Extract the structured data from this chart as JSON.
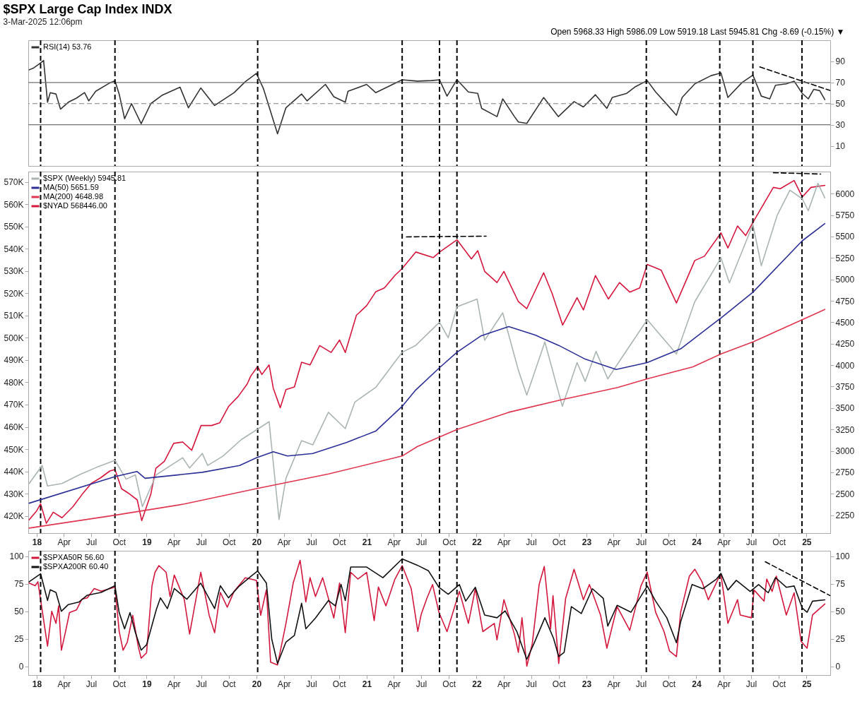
{
  "chart_data": [
    {
      "type": "line",
      "title": "$SPX Large Cap Index INDX",
      "subtitle": "3-Mar-2025 12:06pm",
      "annotations": [
        "Open 5968.33  High 5986.09  Low 5919.18  Last 5945.81  Chg -8.69 (-0.15%) ▼"
      ],
      "xlim": [
        "2017-12-04",
        "2025-03-21"
      ],
      "y2lim": [
        -9,
        110
      ],
      "y2ticks": [
        10,
        30,
        50,
        70,
        90
      ],
      "tick_labels": "y",
      "legend": "top left",
      "series": [
        {
          "name": "RSI(14) 53.76",
          "color": "#333333",
          "axis": "y2",
          "x": [
            "2017-12-07",
            "2017-12-22",
            "2018-01-10",
            "2018-01-24",
            "2018-02-06",
            "2018-02-15",
            "2018-03-06",
            "2018-03-21",
            "2018-04-16",
            "2018-05-13",
            "2018-06-09",
            "2018-06-23",
            "2018-07-16",
            "2018-08-31",
            "2018-09-18",
            "2018-10-02",
            "2018-10-20",
            "2018-11-12",
            "2018-12-14",
            "2019-01-15",
            "2019-02-21",
            "2019-04-22",
            "2019-05-20",
            "2019-06-30",
            "2019-08-15",
            "2019-10-19",
            "2019-11-25",
            "2020-01-01",
            "2020-01-24",
            "2020-03-11",
            "2020-04-08",
            "2020-05-30",
            "2020-06-17",
            "2020-08-17",
            "2020-09-14",
            "2020-10-22",
            "2020-10-31",
            "2021-01-01",
            "2021-01-31",
            "2021-04-29",
            "2021-06-18",
            "2021-08-04",
            "2021-08-31",
            "2021-09-25",
            "2021-10-28",
            "2021-12-05",
            "2022-01-05",
            "2022-01-18",
            "2022-03-10",
            "2022-03-29",
            "2022-05-07",
            "2022-05-20",
            "2022-06-17",
            "2022-08-12",
            "2022-09-30",
            "2022-11-21",
            "2022-12-22",
            "2023-01-31",
            "2023-03-10",
            "2023-03-28",
            "2023-05-15",
            "2023-06-13",
            "2023-07-22",
            "2023-08-19",
            "2023-09-25",
            "2023-10-27",
            "2023-11-15",
            "2023-12-27",
            "2024-02-19",
            "2024-03-23",
            "2024-04-15",
            "2024-06-01",
            "2024-07-07",
            "2024-08-04",
            "2024-09-01",
            "2024-09-20",
            "2024-10-26",
            "2024-11-21",
            "2024-12-18",
            "2025-01-07",
            "2025-01-25",
            "2025-02-14",
            "2025-03-03"
          ],
          "values": [
            82.0,
            83.8,
            87.7,
            90.8,
            51.3,
            60.4,
            59.1,
            44.8,
            51.3,
            55.2,
            60.4,
            52.6,
            61.7,
            69.5,
            71.6,
            59.1,
            35.7,
            50.0,
            31.0,
            50.0,
            57.8,
            65.6,
            46.1,
            64.8,
            48.2,
            60.4,
            70.8,
            78.6,
            64.3,
            21.4,
            46.1,
            59.1,
            52.6,
            68.2,
            56.5,
            51.3,
            61.7,
            68.2,
            60.4,
            72.6,
            71.3,
            71.8,
            72.6,
            57.1,
            72.6,
            61.0,
            59.7,
            45.5,
            37.7,
            54.5,
            37.7,
            32.6,
            31.3,
            55.8,
            37.7,
            51.9,
            46.8,
            58.4,
            45.5,
            55.8,
            59.7,
            66.1,
            71.8,
            61.0,
            49.4,
            39.0,
            55.8,
            68.7,
            76.5,
            79.0,
            55.8,
            70.0,
            77.0,
            57.1,
            54.5,
            67.4,
            68.7,
            71.3,
            59.7,
            54.5,
            63.5,
            62.3,
            53.8
          ]
        },
        {
          "type": "line",
          "color": "#000000",
          "line_style": "dashed",
          "axis": "y2",
          "x": [
            "2024-07-30",
            "2025-03-20"
          ],
          "values": [
            84.7,
            62.5
          ]
        }
      ],
      "ref_lines": [
        {
          "axis": "y2",
          "value": 70,
          "color": "#707070"
        },
        {
          "axis": "y2",
          "value": 50,
          "color": "#808080",
          "line_style": "dashed"
        },
        {
          "axis": "y2",
          "value": 30,
          "color": "#707070"
        },
        {
          "axis": "x",
          "value": "2018-01-14",
          "color": "#000000",
          "line_style": "dashed"
        },
        {
          "axis": "x",
          "value": "2018-09-18",
          "color": "#000000",
          "line_style": "dashed"
        },
        {
          "axis": "x",
          "value": "2020-01-05",
          "color": "#000000",
          "line_style": "dashed"
        },
        {
          "axis": "x",
          "value": "2021-04-29",
          "color": "#000000",
          "line_style": "dashed"
        },
        {
          "axis": "x",
          "value": "2021-08-31",
          "color": "#000000",
          "line_style": "dashed"
        },
        {
          "axis": "x",
          "value": "2021-10-28",
          "color": "#000000",
          "line_style": "dashed"
        },
        {
          "axis": "x",
          "value": "2023-07-19",
          "color": "#000000",
          "line_style": "dashed"
        },
        {
          "axis": "x",
          "value": "2024-03-19",
          "color": "#000000",
          "line_style": "dashed"
        },
        {
          "axis": "x",
          "value": "2024-07-07",
          "color": "#000000",
          "line_style": "dashed"
        },
        {
          "axis": "x",
          "value": "2024-12-17",
          "color": "#000000",
          "line_style": "dashed"
        }
      ]
    },
    {
      "type": "line",
      "xlim": [
        "2017-12-04",
        "2025-03-21"
      ],
      "xticks": [
        {
          "value": "2018-01-01",
          "label": "18"
        },
        {
          "value": "2018-04-01",
          "label": "Apr"
        },
        {
          "value": "2018-07-01",
          "label": "Jul"
        },
        {
          "value": "2018-10-01",
          "label": "Oct"
        },
        {
          "value": "2019-01-01",
          "label": "19"
        },
        {
          "value": "2019-04-01",
          "label": "Apr"
        },
        {
          "value": "2019-07-01",
          "label": "Jul"
        },
        {
          "value": "2019-10-01",
          "label": "Oct"
        },
        {
          "value": "2020-01-01",
          "label": "20"
        },
        {
          "value": "2020-04-01",
          "label": "Apr"
        },
        {
          "value": "2020-07-01",
          "label": "Jul"
        },
        {
          "value": "2020-10-01",
          "label": "Oct"
        },
        {
          "value": "2021-01-01",
          "label": "21"
        },
        {
          "value": "2021-04-01",
          "label": "Apr"
        },
        {
          "value": "2021-07-01",
          "label": "Jul"
        },
        {
          "value": "2021-10-01",
          "label": "Oct"
        },
        {
          "value": "2022-01-01",
          "label": "22"
        },
        {
          "value": "2022-04-01",
          "label": "Apr"
        },
        {
          "value": "2022-07-01",
          "label": "Jul"
        },
        {
          "value": "2022-10-01",
          "label": "Oct"
        },
        {
          "value": "2023-01-01",
          "label": "23"
        },
        {
          "value": "2023-04-01",
          "label": "Apr"
        },
        {
          "value": "2023-07-01",
          "label": "Jul"
        },
        {
          "value": "2023-10-01",
          "label": "Oct"
        },
        {
          "value": "2024-01-01",
          "label": "24"
        },
        {
          "value": "2024-04-01",
          "label": "Apr"
        },
        {
          "value": "2024-07-01",
          "label": "Jul"
        },
        {
          "value": "2024-10-01",
          "label": "Oct"
        },
        {
          "value": "2025-01-01",
          "label": "25"
        }
      ],
      "ylim": [
        412300,
        574600
      ],
      "yticks": [
        {
          "value": 420000,
          "label": "420K"
        },
        {
          "value": 430000,
          "label": "430K"
        },
        {
          "value": 440000,
          "label": "440K"
        },
        {
          "value": 450000,
          "label": "450K"
        },
        {
          "value": 460000,
          "label": "460K"
        },
        {
          "value": 470000,
          "label": "470K"
        },
        {
          "value": 480000,
          "label": "480K"
        },
        {
          "value": 490000,
          "label": "490K"
        },
        {
          "value": 500000,
          "label": "500K"
        },
        {
          "value": 510000,
          "label": "510K"
        },
        {
          "value": 520000,
          "label": "520K"
        },
        {
          "value": 530000,
          "label": "530K"
        },
        {
          "value": 540000,
          "label": "540K"
        },
        {
          "value": 550000,
          "label": "550K"
        },
        {
          "value": 560000,
          "label": "560K"
        },
        {
          "value": 570000,
          "label": "570K"
        }
      ],
      "y2lim": [
        2041,
        6257
      ],
      "y2ticks": [
        2250,
        2500,
        2750,
        3000,
        3250,
        3500,
        3750,
        4000,
        4250,
        4500,
        4750,
        5000,
        5250,
        5500,
        5750,
        6000
      ],
      "legend": "top left",
      "series": [
        {
          "name": "$SPX (Weekly) 5945.81",
          "color": "#aab5b3",
          "axis": "y2",
          "x": [
            "2017-12-07",
            "2018-01-19",
            "2018-02-06",
            "2018-03-26",
            "2018-05-22",
            "2018-07-20",
            "2018-09-18",
            "2018-10-25",
            "2018-11-25",
            "2018-12-18",
            "2019-02-02",
            "2019-05-01",
            "2019-05-24",
            "2019-07-05",
            "2019-07-23",
            "2019-09-12",
            "2019-11-11",
            "2020-02-12",
            "2020-03-16",
            "2020-04-08",
            "2020-05-30",
            "2020-07-06",
            "2020-08-27",
            "2020-10-22",
            "2020-11-23",
            "2021-01-31",
            "2021-04-29",
            "2021-06-13",
            "2021-08-31",
            "2021-09-29",
            "2021-10-28",
            "2022-01-03",
            "2022-01-28",
            "2022-03-29",
            "2022-05-20",
            "2022-06-17",
            "2022-08-16",
            "2022-10-13",
            "2022-12-01",
            "2022-12-28",
            "2023-02-02",
            "2023-03-13",
            "2023-05-01",
            "2023-07-22",
            "2023-10-27",
            "2023-12-27",
            "2024-03-23",
            "2024-04-20",
            "2024-07-07",
            "2024-08-04",
            "2024-09-26",
            "2024-11-07",
            "2024-12-18",
            "2025-01-07",
            "2025-02-08",
            "2025-03-03"
          ],
          "values": [
            2620,
            2830,
            2590,
            2620,
            2720,
            2810,
            2890,
            2670,
            2720,
            2350,
            2720,
            2920,
            2800,
            2970,
            2830,
            2940,
            3130,
            3340,
            2200,
            2680,
            3120,
            3070,
            3450,
            3260,
            3570,
            3740,
            4150,
            4230,
            4500,
            4320,
            4680,
            4770,
            4290,
            4610,
            3940,
            3650,
            4270,
            3520,
            4030,
            3810,
            4160,
            3840,
            4100,
            4530,
            4130,
            4740,
            5250,
            4960,
            5640,
            5160,
            5750,
            6040,
            5940,
            5800,
            6120,
            5950
          ]
        },
        {
          "name": "MA(50) 5651.59",
          "color": "#2b2f95",
          "axis": "y2",
          "x": [
            "2017-12-07",
            "2018-09-18",
            "2018-11-30",
            "2018-12-27",
            "2019-07-05",
            "2019-11-06",
            "2020-01-01",
            "2020-02-26",
            "2020-04-13",
            "2020-07-06",
            "2020-10-27",
            "2021-01-31",
            "2021-04-29",
            "2021-06-13",
            "2021-08-31",
            "2021-10-28",
            "2022-01-15",
            "2022-04-18",
            "2022-07-15",
            "2022-10-01",
            "2022-12-28",
            "2023-04-10",
            "2023-07-22",
            "2023-11-10",
            "2024-03-23",
            "2024-07-07",
            "2024-12-18",
            "2025-03-03"
          ],
          "values": [
            2390,
            2700,
            2760,
            2680,
            2750,
            2830,
            2920,
            2990,
            2940,
            2970,
            3100,
            3230,
            3520,
            3710,
            3970,
            4150,
            4340,
            4450,
            4350,
            4230,
            4070,
            3950,
            4030,
            4190,
            4550,
            4850,
            5450,
            5650
          ]
        },
        {
          "name": "MA(200) 4648.98",
          "color": "#e0354f",
          "axis": "y2",
          "x": [
            "2017-12-07",
            "2018-09-18",
            "2019-05-06",
            "2020-01-01",
            "2020-08-27",
            "2021-04-29",
            "2021-06-18",
            "2021-10-28",
            "2022-04-18",
            "2022-10-14",
            "2023-04-15",
            "2023-07-22",
            "2023-12-21",
            "2024-03-23",
            "2024-07-07",
            "2024-12-18",
            "2025-03-03"
          ],
          "values": [
            2100,
            2250,
            2380,
            2560,
            2730,
            2940,
            3050,
            3250,
            3450,
            3600,
            3740,
            3840,
            3980,
            4130,
            4270,
            4530,
            4650
          ]
        },
        {
          "name": "$NYAD 568446.00",
          "color": "#d6163c",
          "x": [
            "2017-12-07",
            "2018-01-01",
            "2018-01-14",
            "2018-02-02",
            "2018-02-25",
            "2018-03-26",
            "2018-05-01",
            "2018-06-01",
            "2018-07-01",
            "2018-08-01",
            "2018-09-01",
            "2018-09-18",
            "2018-10-10",
            "2018-11-01",
            "2018-12-01",
            "2018-12-16",
            "2019-01-15",
            "2019-02-01",
            "2019-03-01",
            "2019-04-01",
            "2019-05-01",
            "2019-05-31",
            "2019-07-01",
            "2019-08-05",
            "2019-09-01",
            "2019-10-01",
            "2019-11-01",
            "2019-12-01",
            "2019-12-13",
            "2020-01-05",
            "2020-01-19",
            "2020-02-12",
            "2020-02-26",
            "2020-03-20",
            "2020-04-08",
            "2020-05-06",
            "2020-05-30",
            "2020-06-27",
            "2020-07-29",
            "2020-09-05",
            "2020-10-03",
            "2020-10-22",
            "2020-11-28",
            "2021-01-01",
            "2021-01-31",
            "2021-03-01",
            "2021-04-05",
            "2021-04-29",
            "2021-06-13",
            "2021-08-10",
            "2021-08-31",
            "2021-10-28",
            "2021-12-15",
            "2022-01-05",
            "2022-01-28",
            "2022-03-10",
            "2022-04-02",
            "2022-05-20",
            "2022-06-17",
            "2022-08-12",
            "2022-09-09",
            "2022-10-14",
            "2022-12-01",
            "2022-12-22",
            "2023-01-31",
            "2023-03-15",
            "2023-04-21",
            "2023-05-25",
            "2023-06-27",
            "2023-07-22",
            "2023-09-06",
            "2023-10-27",
            "2023-12-27",
            "2024-01-28",
            "2024-03-23",
            "2024-04-15",
            "2024-05-17",
            "2024-06-13",
            "2024-07-11",
            "2024-09-13",
            "2024-10-06",
            "2024-11-21",
            "2024-12-18",
            "2025-01-16",
            "2025-03-03"
          ],
          "values": [
            418300,
            422300,
            425500,
            416700,
            421700,
            419200,
            424100,
            429700,
            434600,
            437100,
            440200,
            440800,
            432200,
            430300,
            427200,
            417900,
            429700,
            441400,
            444500,
            452600,
            453200,
            449500,
            460600,
            460600,
            461800,
            469300,
            473600,
            479200,
            482800,
            487100,
            483500,
            487800,
            477300,
            468600,
            476700,
            477900,
            489000,
            487800,
            496500,
            493400,
            499000,
            493400,
            510100,
            514400,
            520600,
            522400,
            528000,
            531100,
            538500,
            536000,
            538400,
            544000,
            535400,
            539100,
            529800,
            524800,
            529800,
            516200,
            513100,
            529200,
            519900,
            505700,
            518000,
            512500,
            527900,
            517400,
            524800,
            520500,
            522400,
            532900,
            530400,
            515600,
            534700,
            536600,
            547100,
            540300,
            550200,
            545900,
            552700,
            567500,
            566900,
            570600,
            563200,
            567500,
            568400
          ]
        },
        {
          "type": "line",
          "color": "#000000",
          "line_style": "dashed",
          "x": [
            "2021-05-13",
            "2022-02-02"
          ],
          "values": [
            545300,
            545600
          ]
        },
        {
          "type": "line",
          "color": "#000000",
          "line_style": "dashed",
          "x": [
            "2024-09-13",
            "2025-02-17"
          ],
          "values": [
            574100,
            573500
          ]
        }
      ],
      "ref_lines": [
        {
          "axis": "x",
          "value": "2018-01-14",
          "color": "#000000",
          "line_style": "dashed"
        },
        {
          "axis": "x",
          "value": "2018-09-18",
          "color": "#000000",
          "line_style": "dashed"
        },
        {
          "axis": "x",
          "value": "2020-01-05",
          "color": "#000000",
          "line_style": "dashed"
        },
        {
          "axis": "x",
          "value": "2021-04-29",
          "color": "#000000",
          "line_style": "dashed"
        },
        {
          "axis": "x",
          "value": "2021-08-31",
          "color": "#000000",
          "line_style": "dashed"
        },
        {
          "axis": "x",
          "value": "2021-10-28",
          "color": "#000000",
          "line_style": "dashed"
        },
        {
          "axis": "x",
          "value": "2023-07-19",
          "color": "#000000",
          "line_style": "dashed"
        },
        {
          "axis": "x",
          "value": "2024-03-19",
          "color": "#000000",
          "line_style": "dashed"
        },
        {
          "axis": "x",
          "value": "2024-07-07",
          "color": "#000000",
          "line_style": "dashed"
        },
        {
          "axis": "x",
          "value": "2024-12-17",
          "color": "#000000",
          "line_style": "dashed"
        }
      ]
    },
    {
      "type": "line",
      "xlim": [
        "2017-12-04",
        "2025-03-21"
      ],
      "xticks": [
        {
          "value": "2018-01-01",
          "label": "18"
        },
        {
          "value": "2018-04-01",
          "label": "Apr"
        },
        {
          "value": "2018-07-01",
          "label": "Jul"
        },
        {
          "value": "2018-10-01",
          "label": "Oct"
        },
        {
          "value": "2019-01-01",
          "label": "19"
        },
        {
          "value": "2019-04-01",
          "label": "Apr"
        },
        {
          "value": "2019-07-01",
          "label": "Jul"
        },
        {
          "value": "2019-10-01",
          "label": "Oct"
        },
        {
          "value": "2020-01-01",
          "label": "20"
        },
        {
          "value": "2020-04-01",
          "label": "Apr"
        },
        {
          "value": "2020-07-01",
          "label": "Jul"
        },
        {
          "value": "2020-10-01",
          "label": "Oct"
        },
        {
          "value": "2021-01-01",
          "label": "21"
        },
        {
          "value": "2021-04-01",
          "label": "Apr"
        },
        {
          "value": "2021-07-01",
          "label": "Jul"
        },
        {
          "value": "2021-10-01",
          "label": "Oct"
        },
        {
          "value": "2022-01-01",
          "label": "22"
        },
        {
          "value": "2022-04-01",
          "label": "Apr"
        },
        {
          "value": "2022-07-01",
          "label": "Jul"
        },
        {
          "value": "2022-10-01",
          "label": "Oct"
        },
        {
          "value": "2023-01-01",
          "label": "23"
        },
        {
          "value": "2023-04-01",
          "label": "Apr"
        },
        {
          "value": "2023-07-01",
          "label": "Jul"
        },
        {
          "value": "2023-10-01",
          "label": "Oct"
        },
        {
          "value": "2024-01-01",
          "label": "24"
        },
        {
          "value": "2024-04-01",
          "label": "Apr"
        },
        {
          "value": "2024-07-01",
          "label": "Jul"
        },
        {
          "value": "2024-10-01",
          "label": "Oct"
        },
        {
          "value": "2025-01-01",
          "label": "25"
        }
      ],
      "ylim": [
        -8,
        105
      ],
      "yticks": [
        0,
        25,
        50,
        75,
        100
      ],
      "y2lim": [
        -8,
        105
      ],
      "y2ticks": [
        0,
        25,
        50,
        75,
        100
      ],
      "legend": "top left",
      "series": [
        {
          "name": "$SPXA50R 56.60",
          "color": "#d3173d",
          "x": [
            "2017-12-07",
            "2017-12-27",
            "2018-01-05",
            "2018-02-06",
            "2018-02-20",
            "2018-03-06",
            "2018-03-15",
            "2018-03-24",
            "2018-04-07",
            "2018-04-20",
            "2018-05-13",
            "2018-05-31",
            "2018-06-18",
            "2018-07-11",
            "2018-08-03",
            "2018-09-18",
            "2018-10-02",
            "2018-10-15",
            "2018-10-29",
            "2018-11-16",
            "2018-12-05",
            "2018-12-14",
            "2019-01-01",
            "2019-01-19",
            "2019-01-29",
            "2019-02-11",
            "2019-03-07",
            "2019-03-20",
            "2019-04-03",
            "2019-05-06",
            "2019-05-24",
            "2019-06-30",
            "2019-07-28",
            "2019-08-15",
            "2019-09-03",
            "2019-09-26",
            "2019-10-19",
            "2019-11-25",
            "2020-01-01",
            "2020-01-15",
            "2020-02-03",
            "2020-02-17",
            "2020-03-11",
            "2020-04-08",
            "2020-05-02",
            "2020-05-25",
            "2020-06-13",
            "2020-06-27",
            "2020-07-15",
            "2020-08-08",
            "2020-09-14",
            "2020-10-03",
            "2020-10-22",
            "2020-11-09",
            "2020-12-03",
            "2021-01-01",
            "2021-01-26",
            "2021-02-09",
            "2021-03-06",
            "2021-04-05",
            "2021-04-29",
            "2021-05-29",
            "2021-06-20",
            "2021-07-01",
            "2021-07-20",
            "2021-08-08",
            "2021-08-29",
            "2021-09-25",
            "2021-11-05",
            "2021-12-05",
            "2021-12-28",
            "2022-01-22",
            "2022-03-01",
            "2022-03-10",
            "2022-04-02",
            "2022-05-07",
            "2022-05-20",
            "2022-06-01",
            "2022-06-17",
            "2022-07-05",
            "2022-07-28",
            "2022-08-14",
            "2022-09-04",
            "2022-09-12",
            "2022-10-01",
            "2022-10-24",
            "2022-11-21",
            "2022-12-22",
            "2023-01-11",
            "2023-02-17",
            "2023-03-10",
            "2023-04-13",
            "2023-05-25",
            "2023-07-01",
            "2023-07-22",
            "2023-08-19",
            "2023-09-16",
            "2023-10-04",
            "2023-10-27",
            "2023-11-10",
            "2023-12-09",
            "2023-12-27",
            "2024-01-20",
            "2024-02-10",
            "2024-03-18",
            "2024-03-23",
            "2024-04-15",
            "2024-05-17",
            "2024-05-26",
            "2024-07-02",
            "2024-07-11",
            "2024-08-13",
            "2024-08-22",
            "2024-09-09",
            "2024-09-23",
            "2024-10-26",
            "2024-11-21",
            "2024-12-14",
            "2025-01-03",
            "2025-01-21",
            "2025-03-03"
          ],
          "values": [
            75.6,
            73.2,
            76.8,
            18.3,
            50.0,
            39.0,
            54.9,
            14.6,
            31.7,
            48.8,
            51.2,
            61.0,
            62.2,
            70.7,
            68.3,
            72.0,
            31.7,
            14.6,
            22.0,
            46.3,
            17.1,
            7.3,
            12.2,
            73.2,
            85.4,
            91.5,
            85.4,
            63.4,
            82.9,
            61.0,
            29.3,
            85.4,
            46.3,
            30.5,
            67.1,
            53.7,
            68.3,
            80.5,
            78.0,
            46.3,
            69.5,
            3.7,
            1.2,
            39.0,
            75.6,
            96.3,
            58.5,
            80.5,
            63.4,
            80.5,
            43.9,
            75.6,
            30.5,
            85.4,
            79.3,
            85.4,
            41.5,
            72.0,
            54.9,
            79.3,
            91.5,
            70.7,
            31.7,
            47.0,
            61.7,
            74.3,
            49.1,
            31.5,
            68.0,
            39.0,
            70.5,
            31.5,
            39.0,
            24.0,
            60.5,
            29.0,
            12.6,
            44.1,
            0.0,
            20.2,
            74.3,
            90.7,
            34.0,
            64.2,
            2.5,
            61.7,
            88.2,
            60.5,
            74.3,
            46.6,
            16.4,
            54.2,
            32.7,
            73.0,
            85.6,
            49.1,
            31.5,
            13.9,
            8.8,
            49.1,
            81.9,
            88.2,
            76.8,
            60.5,
            81.9,
            83.1,
            39.0,
            60.5,
            46.6,
            44.1,
            69.3,
            59.2,
            79.3,
            68.0,
            81.9,
            46.6,
            66.8,
            22.7,
            16.4,
            46.6,
            56.6
          ]
        },
        {
          "name": "$SPXA200R 60.40",
          "color": "#111111",
          "x": [
            "2017-12-07",
            "2018-01-14",
            "2018-02-06",
            "2018-02-15",
            "2018-03-06",
            "2018-03-24",
            "2018-04-16",
            "2018-05-22",
            "2018-06-18",
            "2018-08-03",
            "2018-09-18",
            "2018-10-02",
            "2018-10-20",
            "2018-11-07",
            "2018-11-25",
            "2018-12-14",
            "2019-01-01",
            "2019-02-02",
            "2019-02-16",
            "2019-03-11",
            "2019-04-03",
            "2019-05-15",
            "2019-06-30",
            "2019-08-15",
            "2019-09-03",
            "2019-09-30",
            "2019-11-06",
            "2019-12-13",
            "2020-01-05",
            "2020-02-03",
            "2020-02-21",
            "2020-03-11",
            "2020-04-08",
            "2020-05-06",
            "2020-05-30",
            "2020-06-13",
            "2020-07-15",
            "2020-08-27",
            "2020-09-19",
            "2020-10-08",
            "2020-10-22",
            "2020-11-09",
            "2021-01-01",
            "2021-02-24",
            "2021-04-29",
            "2021-06-18",
            "2021-07-25",
            "2021-08-29",
            "2021-09-29",
            "2021-11-05",
            "2021-11-26",
            "2021-12-28",
            "2022-01-28",
            "2022-03-10",
            "2022-04-06",
            "2022-05-15",
            "2022-06-17",
            "2022-07-10",
            "2022-08-16",
            "2022-09-14",
            "2022-10-01",
            "2022-10-19",
            "2022-11-12",
            "2022-12-15",
            "2023-01-21",
            "2023-02-26",
            "2023-03-13",
            "2023-04-13",
            "2023-05-29",
            "2023-07-22",
            "2023-08-19",
            "2023-09-25",
            "2023-10-27",
            "2023-11-10",
            "2023-12-18",
            "2024-01-23",
            "2024-03-08",
            "2024-03-23",
            "2024-04-15",
            "2024-05-13",
            "2024-06-28",
            "2024-07-26",
            "2024-08-27",
            "2024-09-20",
            "2024-10-26",
            "2024-11-21",
            "2024-12-18",
            "2025-01-03",
            "2025-01-21",
            "2025-03-03"
          ],
          "values": [
            76.8,
            84.1,
            59.8,
            69.5,
            67.1,
            50.0,
            56.1,
            58.5,
            64.6,
            67.1,
            73.2,
            48.8,
            34.1,
            48.8,
            30.5,
            14.6,
            19.5,
            51.2,
            62.2,
            52.4,
            70.7,
            61.0,
            75.6,
            52.4,
            73.2,
            62.2,
            73.2,
            81.7,
            86.6,
            75.6,
            24.4,
            2.4,
            22.0,
            28.0,
            57.3,
            34.1,
            43.9,
            59.8,
            54.9,
            74.4,
            59.8,
            90.2,
            90.2,
            80.5,
            97.6,
            91.9,
            86.9,
            71.8,
            65.5,
            74.3,
            59.2,
            71.8,
            46.6,
            44.1,
            50.4,
            31.5,
            6.3,
            20.2,
            44.1,
            25.2,
            8.8,
            12.6,
            54.2,
            47.9,
            70.5,
            61.7,
            36.5,
            55.4,
            49.1,
            73.0,
            59.2,
            44.1,
            21.4,
            40.3,
            74.3,
            70.5,
            79.3,
            84.4,
            69.3,
            78.1,
            68.0,
            74.3,
            66.8,
            80.6,
            71.8,
            73.0,
            52.9,
            49.1,
            59.2,
            60.4
          ]
        },
        {
          "type": "line",
          "color": "#000000",
          "line_style": "dashed",
          "x": [
            "2024-08-17",
            "2025-03-20"
          ],
          "values": [
            95.0,
            64.3
          ]
        }
      ],
      "ref_lines": [
        {
          "axis": "x",
          "value": "2018-01-14",
          "color": "#000000",
          "line_style": "dashed"
        },
        {
          "axis": "x",
          "value": "2018-09-18",
          "color": "#000000",
          "line_style": "dashed"
        },
        {
          "axis": "x",
          "value": "2020-01-05",
          "color": "#000000",
          "line_style": "dashed"
        },
        {
          "axis": "x",
          "value": "2021-04-29",
          "color": "#000000",
          "line_style": "dashed"
        },
        {
          "axis": "x",
          "value": "2021-08-31",
          "color": "#000000",
          "line_style": "dashed"
        },
        {
          "axis": "x",
          "value": "2021-10-28",
          "color": "#000000",
          "line_style": "dashed"
        },
        {
          "axis": "x",
          "value": "2023-07-19",
          "color": "#000000",
          "line_style": "dashed"
        },
        {
          "axis": "x",
          "value": "2024-03-19",
          "color": "#000000",
          "line_style": "dashed"
        },
        {
          "axis": "x",
          "value": "2024-07-07",
          "color": "#000000",
          "line_style": "dashed"
        },
        {
          "axis": "x",
          "value": "2024-12-17",
          "color": "#000000",
          "line_style": "dashed"
        }
      ]
    }
  ]
}
